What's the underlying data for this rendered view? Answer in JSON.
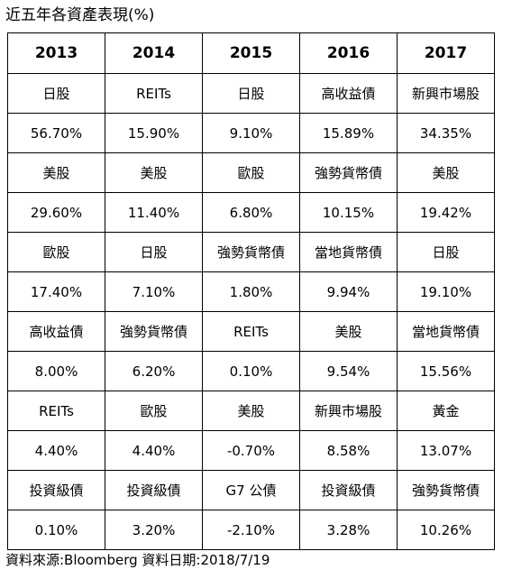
{
  "title": "近五年各資產表現(%)",
  "years": [
    "2013",
    "2014",
    "2015",
    "2016",
    "2017"
  ],
  "rows": [
    [
      "日股",
      "REITs",
      "日股",
      "高收益債",
      "新興市場股"
    ],
    [
      "56.70%",
      "15.90%",
      "9.10%",
      "15.89%",
      "34.35%"
    ],
    [
      "美股",
      "美股",
      "歐股",
      "強勢貨幣債",
      "美股"
    ],
    [
      "29.60%",
      "11.40%",
      "6.80%",
      "10.15%",
      "19.42%"
    ],
    [
      "歐股",
      "日股",
      "強勢貨幣債",
      "當地貨幣債",
      "日股"
    ],
    [
      "17.40%",
      "7.10%",
      "1.80%",
      "9.94%",
      "19.10%"
    ],
    [
      "高收益債",
      "強勢貨幣債",
      "REITs",
      "美股",
      "當地貨幣債"
    ],
    [
      "8.00%",
      "6.20%",
      "0.10%",
      "9.54%",
      "15.56%"
    ],
    [
      "REITs",
      "歐股",
      "美股",
      "新興市場股",
      "黃金"
    ],
    [
      "4.40%",
      "4.40%",
      "-0.70%",
      "8.58%",
      "13.07%"
    ],
    [
      "投資級債",
      "投資級債",
      "G7 公債",
      "投資級債",
      "強勢貨幣債"
    ],
    [
      "0.10%",
      "3.20%",
      "-2.10%",
      "3.28%",
      "10.26%"
    ]
  ],
  "footer": "資料來源:Bloomberg 資料日期:2018/7/19"
}
